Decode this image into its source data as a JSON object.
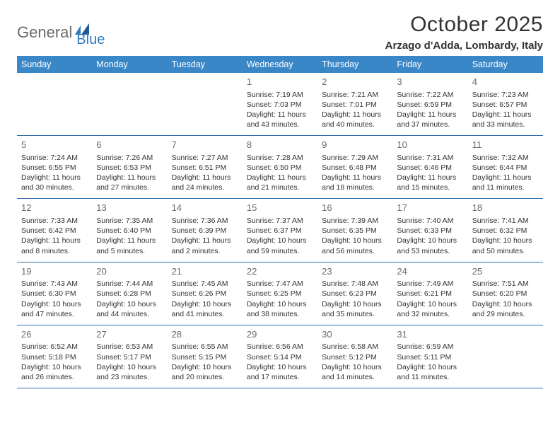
{
  "logo": {
    "text1": "General",
    "text2": "Blue"
  },
  "title": "October 2025",
  "location": "Arzago d'Adda, Lombardy, Italy",
  "colors": {
    "header_bg": "#3a87c8",
    "header_text": "#ffffff",
    "border": "#2f6ea8",
    "daynum": "#6b6b6b",
    "body_text": "#333333",
    "logo_gray": "#6b6b6b",
    "logo_blue": "#2f7bbf"
  },
  "day_headers": [
    "Sunday",
    "Monday",
    "Tuesday",
    "Wednesday",
    "Thursday",
    "Friday",
    "Saturday"
  ],
  "weeks": [
    [
      null,
      null,
      null,
      {
        "n": "1",
        "sr": "7:19 AM",
        "ss": "7:03 PM",
        "dl1": "Daylight: 11 hours",
        "dl2": "and 43 minutes."
      },
      {
        "n": "2",
        "sr": "7:21 AM",
        "ss": "7:01 PM",
        "dl1": "Daylight: 11 hours",
        "dl2": "and 40 minutes."
      },
      {
        "n": "3",
        "sr": "7:22 AM",
        "ss": "6:59 PM",
        "dl1": "Daylight: 11 hours",
        "dl2": "and 37 minutes."
      },
      {
        "n": "4",
        "sr": "7:23 AM",
        "ss": "6:57 PM",
        "dl1": "Daylight: 11 hours",
        "dl2": "and 33 minutes."
      }
    ],
    [
      {
        "n": "5",
        "sr": "7:24 AM",
        "ss": "6:55 PM",
        "dl1": "Daylight: 11 hours",
        "dl2": "and 30 minutes."
      },
      {
        "n": "6",
        "sr": "7:26 AM",
        "ss": "6:53 PM",
        "dl1": "Daylight: 11 hours",
        "dl2": "and 27 minutes."
      },
      {
        "n": "7",
        "sr": "7:27 AM",
        "ss": "6:51 PM",
        "dl1": "Daylight: 11 hours",
        "dl2": "and 24 minutes."
      },
      {
        "n": "8",
        "sr": "7:28 AM",
        "ss": "6:50 PM",
        "dl1": "Daylight: 11 hours",
        "dl2": "and 21 minutes."
      },
      {
        "n": "9",
        "sr": "7:29 AM",
        "ss": "6:48 PM",
        "dl1": "Daylight: 11 hours",
        "dl2": "and 18 minutes."
      },
      {
        "n": "10",
        "sr": "7:31 AM",
        "ss": "6:46 PM",
        "dl1": "Daylight: 11 hours",
        "dl2": "and 15 minutes."
      },
      {
        "n": "11",
        "sr": "7:32 AM",
        "ss": "6:44 PM",
        "dl1": "Daylight: 11 hours",
        "dl2": "and 11 minutes."
      }
    ],
    [
      {
        "n": "12",
        "sr": "7:33 AM",
        "ss": "6:42 PM",
        "dl1": "Daylight: 11 hours",
        "dl2": "and 8 minutes."
      },
      {
        "n": "13",
        "sr": "7:35 AM",
        "ss": "6:40 PM",
        "dl1": "Daylight: 11 hours",
        "dl2": "and 5 minutes."
      },
      {
        "n": "14",
        "sr": "7:36 AM",
        "ss": "6:39 PM",
        "dl1": "Daylight: 11 hours",
        "dl2": "and 2 minutes."
      },
      {
        "n": "15",
        "sr": "7:37 AM",
        "ss": "6:37 PM",
        "dl1": "Daylight: 10 hours",
        "dl2": "and 59 minutes."
      },
      {
        "n": "16",
        "sr": "7:39 AM",
        "ss": "6:35 PM",
        "dl1": "Daylight: 10 hours",
        "dl2": "and 56 minutes."
      },
      {
        "n": "17",
        "sr": "7:40 AM",
        "ss": "6:33 PM",
        "dl1": "Daylight: 10 hours",
        "dl2": "and 53 minutes."
      },
      {
        "n": "18",
        "sr": "7:41 AM",
        "ss": "6:32 PM",
        "dl1": "Daylight: 10 hours",
        "dl2": "and 50 minutes."
      }
    ],
    [
      {
        "n": "19",
        "sr": "7:43 AM",
        "ss": "6:30 PM",
        "dl1": "Daylight: 10 hours",
        "dl2": "and 47 minutes."
      },
      {
        "n": "20",
        "sr": "7:44 AM",
        "ss": "6:28 PM",
        "dl1": "Daylight: 10 hours",
        "dl2": "and 44 minutes."
      },
      {
        "n": "21",
        "sr": "7:45 AM",
        "ss": "6:26 PM",
        "dl1": "Daylight: 10 hours",
        "dl2": "and 41 minutes."
      },
      {
        "n": "22",
        "sr": "7:47 AM",
        "ss": "6:25 PM",
        "dl1": "Daylight: 10 hours",
        "dl2": "and 38 minutes."
      },
      {
        "n": "23",
        "sr": "7:48 AM",
        "ss": "6:23 PM",
        "dl1": "Daylight: 10 hours",
        "dl2": "and 35 minutes."
      },
      {
        "n": "24",
        "sr": "7:49 AM",
        "ss": "6:21 PM",
        "dl1": "Daylight: 10 hours",
        "dl2": "and 32 minutes."
      },
      {
        "n": "25",
        "sr": "7:51 AM",
        "ss": "6:20 PM",
        "dl1": "Daylight: 10 hours",
        "dl2": "and 29 minutes."
      }
    ],
    [
      {
        "n": "26",
        "sr": "6:52 AM",
        "ss": "5:18 PM",
        "dl1": "Daylight: 10 hours",
        "dl2": "and 26 minutes."
      },
      {
        "n": "27",
        "sr": "6:53 AM",
        "ss": "5:17 PM",
        "dl1": "Daylight: 10 hours",
        "dl2": "and 23 minutes."
      },
      {
        "n": "28",
        "sr": "6:55 AM",
        "ss": "5:15 PM",
        "dl1": "Daylight: 10 hours",
        "dl2": "and 20 minutes."
      },
      {
        "n": "29",
        "sr": "6:56 AM",
        "ss": "5:14 PM",
        "dl1": "Daylight: 10 hours",
        "dl2": "and 17 minutes."
      },
      {
        "n": "30",
        "sr": "6:58 AM",
        "ss": "5:12 PM",
        "dl1": "Daylight: 10 hours",
        "dl2": "and 14 minutes."
      },
      {
        "n": "31",
        "sr": "6:59 AM",
        "ss": "5:11 PM",
        "dl1": "Daylight: 10 hours",
        "dl2": "and 11 minutes."
      },
      null
    ]
  ],
  "labels": {
    "sunrise": "Sunrise: ",
    "sunset": "Sunset: "
  }
}
